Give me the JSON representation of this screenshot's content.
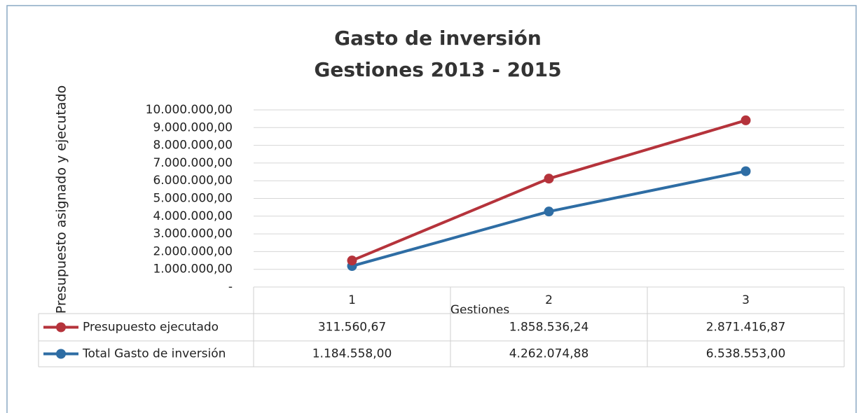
{
  "chart_data": {
    "type": "line",
    "stacked": true,
    "title": [
      "Gasto de inversión",
      "Gestiones 2013 - 2015"
    ],
    "y_label": "Presupuesto asignado y ejecutado",
    "x_label": "Gestiones",
    "categories": [
      "1",
      "2",
      "3"
    ],
    "series": [
      {
        "name": "Presupuesto ejecutado",
        "color": "#b5333b",
        "values": [
          311560.67,
          1858536.24,
          2871416.87
        ],
        "value_labels": [
          "311.560,67",
          "1.858.536,24",
          "2.871.416,87"
        ]
      },
      {
        "name": "Total Gasto de inversión",
        "color": "#2e6da4",
        "values": [
          1184558.0,
          4262074.88,
          6538553.0
        ],
        "value_labels": [
          "1.184.558,00",
          "4.262.074,88",
          "6.538.553,00"
        ]
      }
    ],
    "ylim": [
      0,
      10000000
    ],
    "yticks": [
      {
        "value": 0,
        "label": "-"
      },
      {
        "value": 1000000,
        "label": "1.000.000,00"
      },
      {
        "value": 2000000,
        "label": "2.000.000,00"
      },
      {
        "value": 3000000,
        "label": "3.000.000,00"
      },
      {
        "value": 4000000,
        "label": "4.000.000,00"
      },
      {
        "value": 5000000,
        "label": "5.000.000,00"
      },
      {
        "value": 6000000,
        "label": "6.000.000,00"
      },
      {
        "value": 7000000,
        "label": "7.000.000,00"
      },
      {
        "value": 8000000,
        "label": "8.000.000,00"
      },
      {
        "value": 9000000,
        "label": "9.000.000,00"
      },
      {
        "value": 10000000,
        "label": "10.000.000,00"
      }
    ],
    "grid": true
  }
}
